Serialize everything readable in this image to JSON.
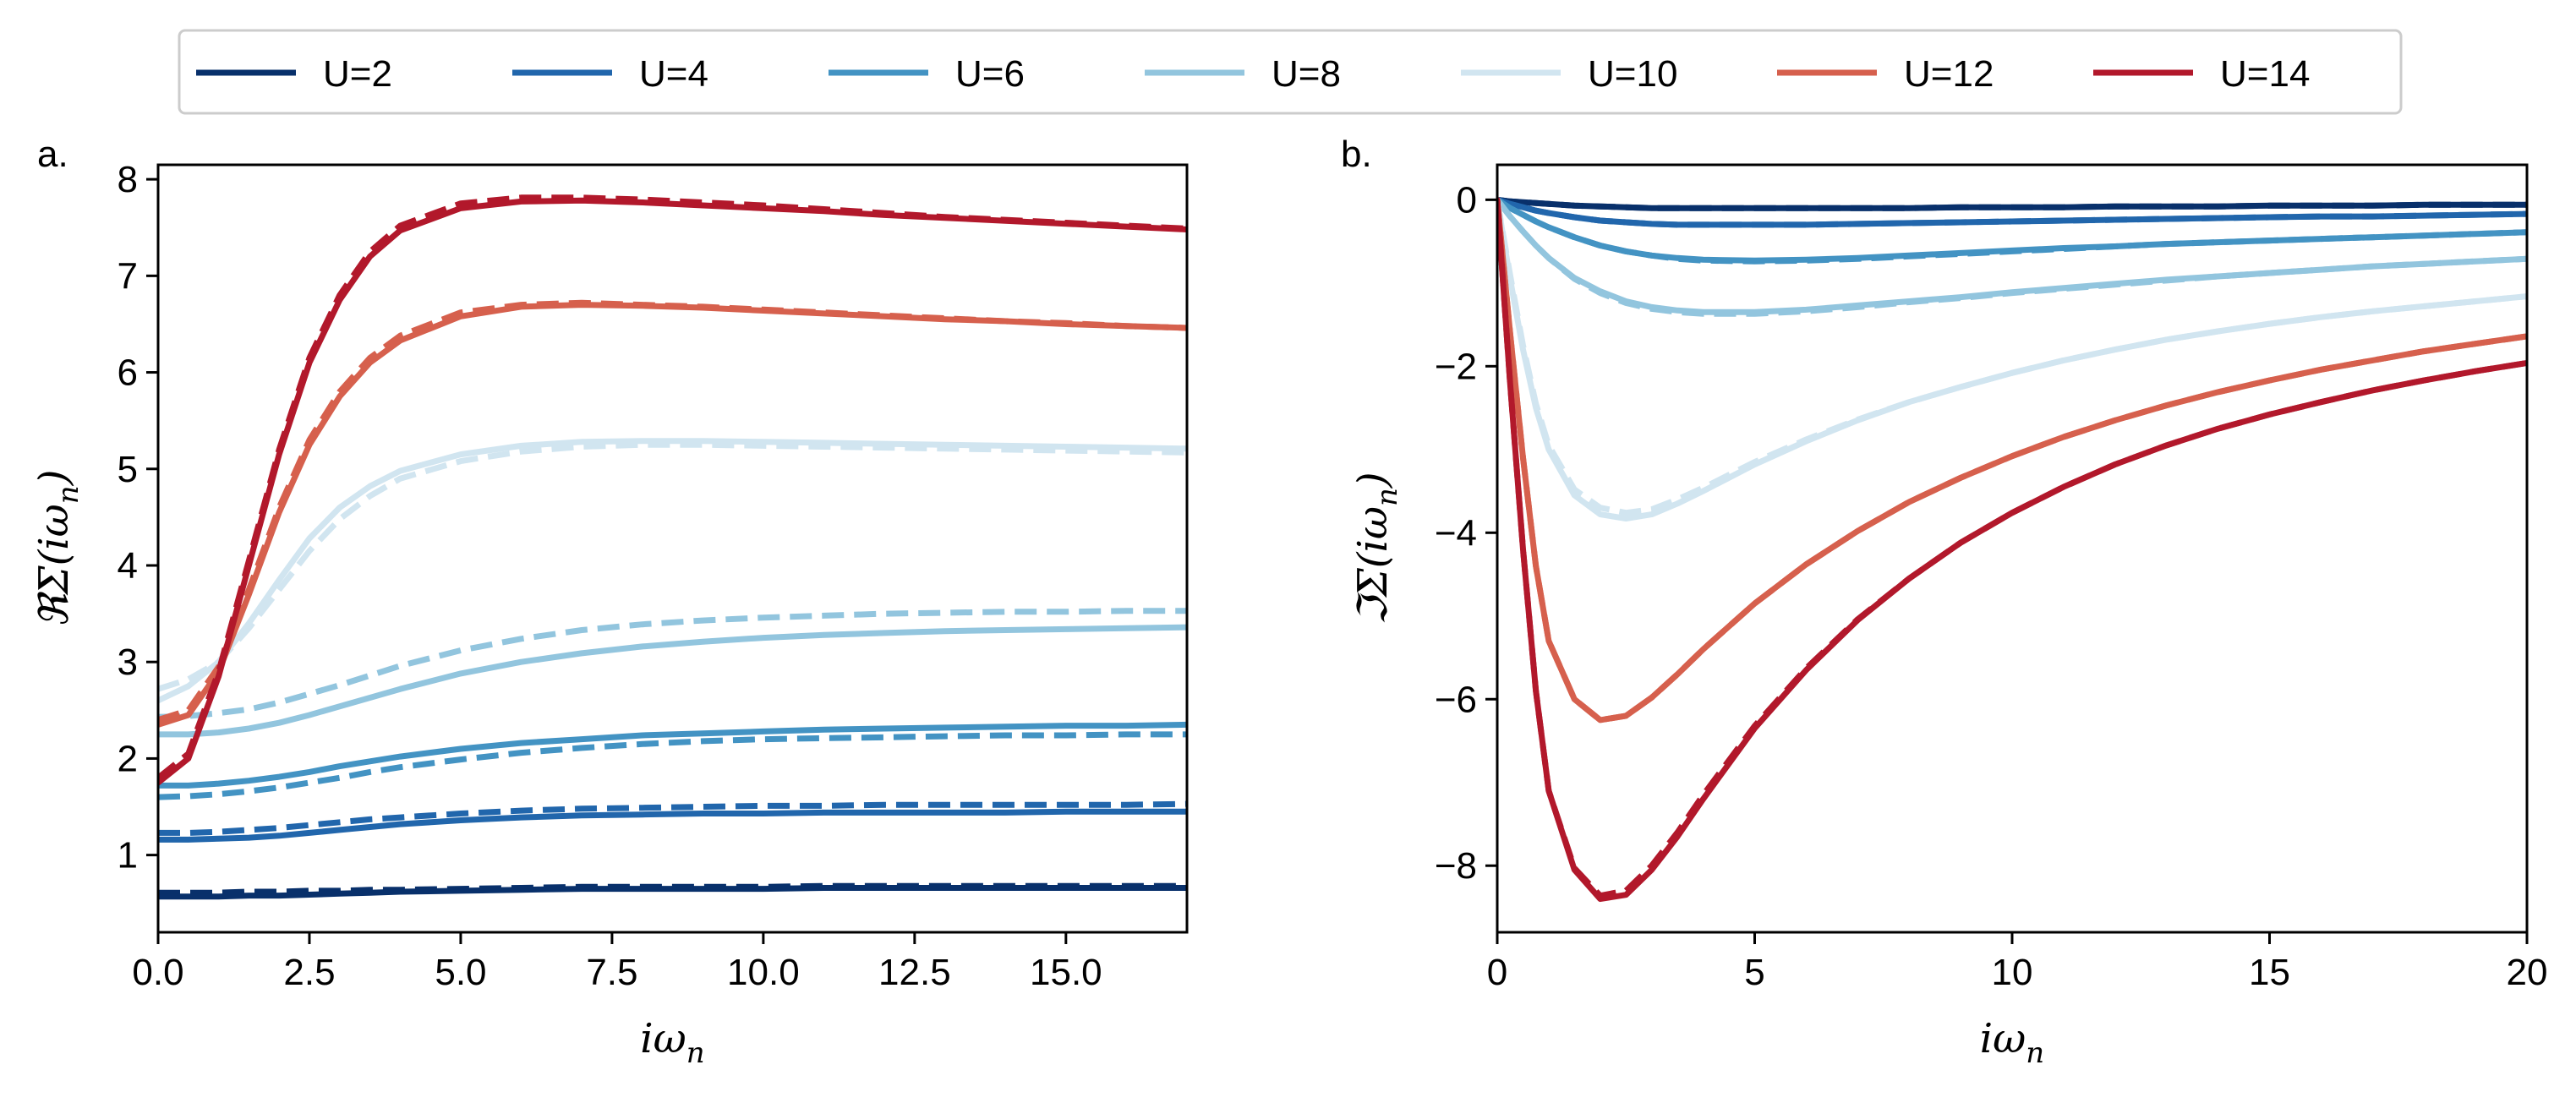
{
  "legend": [
    {
      "name": "U=2",
      "color": "#08306b"
    },
    {
      "name": "U=4",
      "color": "#2166ac"
    },
    {
      "name": "U=6",
      "color": "#4393c3"
    },
    {
      "name": "U=8",
      "color": "#92c5de"
    },
    {
      "name": "U=10",
      "color": "#d1e5f0"
    },
    {
      "name": "U=12",
      "color": "#d6604d"
    },
    {
      "name": "U=14",
      "color": "#b2182b"
    }
  ],
  "chart_data": [
    {
      "type": "line",
      "panel_label": "a.",
      "xlabel_text": "iω",
      "xlabel_sub": "n",
      "ylabel_prefix": "ℜΣ(iω",
      "ylabel_sub": "n",
      "ylabel_suffix": ")",
      "xlim": [
        0,
        17
      ],
      "ylim": [
        0.2,
        8.15
      ],
      "xticks": [
        0,
        2.5,
        5,
        7.5,
        10,
        12.5,
        15
      ],
      "xtick_labels": [
        "0.0",
        "2.5",
        "5.0",
        "7.5",
        "10.0",
        "12.5",
        "15.0"
      ],
      "yticks": [
        1,
        2,
        3,
        4,
        5,
        6,
        7,
        8
      ],
      "ytick_labels": [
        "1",
        "2",
        "3",
        "4",
        "5",
        "6",
        "7",
        "8"
      ],
      "x": [
        0,
        0.5,
        1,
        1.5,
        2,
        2.5,
        3,
        3.5,
        4,
        5,
        6,
        7,
        8,
        9,
        10,
        11,
        12,
        13,
        14,
        15,
        16,
        17
      ],
      "series": [
        {
          "name": "U=2",
          "solid": [
            0.57,
            0.57,
            0.57,
            0.58,
            0.58,
            0.59,
            0.6,
            0.61,
            0.62,
            0.63,
            0.64,
            0.65,
            0.65,
            0.65,
            0.65,
            0.66,
            0.66,
            0.66,
            0.66,
            0.66,
            0.66,
            0.66
          ],
          "dashed": [
            0.61,
            0.61,
            0.61,
            0.62,
            0.62,
            0.63,
            0.63,
            0.64,
            0.64,
            0.65,
            0.66,
            0.67,
            0.67,
            0.67,
            0.67,
            0.68,
            0.68,
            0.68,
            0.68,
            0.68,
            0.68,
            0.68
          ]
        },
        {
          "name": "U=4",
          "solid": [
            1.16,
            1.16,
            1.17,
            1.18,
            1.2,
            1.23,
            1.26,
            1.29,
            1.32,
            1.36,
            1.39,
            1.41,
            1.42,
            1.43,
            1.43,
            1.44,
            1.44,
            1.44,
            1.44,
            1.45,
            1.45,
            1.45
          ],
          "dashed": [
            1.23,
            1.23,
            1.24,
            1.26,
            1.28,
            1.31,
            1.34,
            1.37,
            1.39,
            1.43,
            1.46,
            1.48,
            1.49,
            1.5,
            1.51,
            1.51,
            1.52,
            1.52,
            1.52,
            1.52,
            1.52,
            1.53
          ]
        },
        {
          "name": "U=6",
          "solid": [
            1.72,
            1.72,
            1.74,
            1.77,
            1.81,
            1.86,
            1.92,
            1.97,
            2.02,
            2.1,
            2.16,
            2.2,
            2.24,
            2.26,
            2.28,
            2.3,
            2.31,
            2.32,
            2.33,
            2.34,
            2.34,
            2.35
          ],
          "dashed": [
            1.6,
            1.61,
            1.63,
            1.66,
            1.7,
            1.75,
            1.8,
            1.86,
            1.91,
            1.99,
            2.06,
            2.11,
            2.15,
            2.18,
            2.2,
            2.21,
            2.22,
            2.23,
            2.24,
            2.24,
            2.25,
            2.25
          ]
        },
        {
          "name": "U=8",
          "solid": [
            2.25,
            2.25,
            2.27,
            2.31,
            2.37,
            2.45,
            2.54,
            2.63,
            2.72,
            2.88,
            3.0,
            3.09,
            3.16,
            3.21,
            3.25,
            3.28,
            3.3,
            3.32,
            3.33,
            3.34,
            3.35,
            3.36
          ],
          "dashed": [
            2.43,
            2.44,
            2.47,
            2.51,
            2.58,
            2.67,
            2.76,
            2.86,
            2.96,
            3.12,
            3.24,
            3.33,
            3.39,
            3.43,
            3.46,
            3.48,
            3.5,
            3.51,
            3.52,
            3.52,
            3.53,
            3.53
          ]
        },
        {
          "name": "U=10",
          "solid": [
            2.6,
            2.75,
            3.0,
            3.4,
            3.85,
            4.28,
            4.6,
            4.82,
            4.98,
            5.15,
            5.24,
            5.28,
            5.29,
            5.29,
            5.28,
            5.27,
            5.26,
            5.25,
            5.24,
            5.23,
            5.22,
            5.21
          ],
          "dashed": [
            2.72,
            2.82,
            3.0,
            3.35,
            3.75,
            4.15,
            4.48,
            4.72,
            4.9,
            5.08,
            5.18,
            5.23,
            5.25,
            5.25,
            5.24,
            5.23,
            5.22,
            5.21,
            5.2,
            5.19,
            5.18,
            5.17
          ]
        },
        {
          "name": "U=12",
          "solid": [
            2.35,
            2.45,
            2.9,
            3.7,
            4.55,
            5.25,
            5.75,
            6.1,
            6.33,
            6.58,
            6.68,
            6.7,
            6.69,
            6.67,
            6.64,
            6.61,
            6.58,
            6.55,
            6.53,
            6.5,
            6.48,
            6.46
          ],
          "dashed": [
            2.4,
            2.5,
            2.95,
            3.75,
            4.6,
            5.3,
            5.8,
            6.15,
            6.38,
            6.62,
            6.7,
            6.72,
            6.7,
            6.68,
            6.65,
            6.62,
            6.59,
            6.56,
            6.53,
            6.51,
            6.48,
            6.46
          ]
        },
        {
          "name": "U=14",
          "solid": [
            1.75,
            2.0,
            2.85,
            4.0,
            5.15,
            6.1,
            6.75,
            7.2,
            7.47,
            7.7,
            7.77,
            7.78,
            7.76,
            7.73,
            7.7,
            7.67,
            7.63,
            7.6,
            7.57,
            7.54,
            7.51,
            7.48
          ],
          "dashed": [
            1.8,
            2.05,
            2.9,
            4.05,
            5.2,
            6.15,
            6.8,
            7.25,
            7.52,
            7.75,
            7.81,
            7.81,
            7.79,
            7.76,
            7.73,
            7.69,
            7.65,
            7.61,
            7.58,
            7.55,
            7.52,
            7.49
          ]
        }
      ]
    },
    {
      "type": "line",
      "panel_label": "b.",
      "xlabel_text": "iω",
      "xlabel_sub": "n",
      "ylabel_prefix": "ℑΣ(iω",
      "ylabel_sub": "n",
      "ylabel_suffix": ")",
      "xlim": [
        0,
        20
      ],
      "ylim": [
        -8.8,
        0.42
      ],
      "xticks": [
        0,
        5,
        10,
        15,
        20
      ],
      "xtick_labels": [
        "0",
        "5",
        "10",
        "15",
        "20"
      ],
      "yticks": [
        0,
        -2,
        -4,
        -6,
        -8
      ],
      "ytick_labels": [
        "0",
        "−2",
        "−4",
        "−6",
        "−8"
      ],
      "x": [
        0,
        0.25,
        0.5,
        0.75,
        1,
        1.5,
        2,
        2.5,
        3,
        3.5,
        4,
        5,
        6,
        7,
        8,
        9,
        10,
        11,
        12,
        13,
        14,
        15,
        16,
        17,
        18,
        19,
        20
      ],
      "series": [
        {
          "name": "U=2",
          "solid": [
            0,
            -0.02,
            -0.03,
            -0.04,
            -0.05,
            -0.07,
            -0.08,
            -0.09,
            -0.1,
            -0.1,
            -0.1,
            -0.1,
            -0.1,
            -0.1,
            -0.1,
            -0.09,
            -0.09,
            -0.09,
            -0.08,
            -0.08,
            -0.08,
            -0.07,
            -0.07,
            -0.07,
            -0.06,
            -0.06,
            -0.06
          ],
          "dashed": [
            0,
            -0.02,
            -0.03,
            -0.04,
            -0.05,
            -0.07,
            -0.08,
            -0.09,
            -0.1,
            -0.1,
            -0.1,
            -0.1,
            -0.1,
            -0.1,
            -0.1,
            -0.09,
            -0.09,
            -0.09,
            -0.08,
            -0.08,
            -0.08,
            -0.07,
            -0.07,
            -0.07,
            -0.06,
            -0.06,
            -0.06
          ]
        },
        {
          "name": "U=4",
          "solid": [
            0,
            -0.05,
            -0.09,
            -0.13,
            -0.16,
            -0.21,
            -0.25,
            -0.27,
            -0.29,
            -0.3,
            -0.3,
            -0.3,
            -0.3,
            -0.29,
            -0.28,
            -0.27,
            -0.26,
            -0.25,
            -0.24,
            -0.23,
            -0.22,
            -0.21,
            -0.2,
            -0.2,
            -0.19,
            -0.18,
            -0.17
          ],
          "dashed": [
            0,
            -0.05,
            -0.09,
            -0.13,
            -0.16,
            -0.21,
            -0.25,
            -0.27,
            -0.29,
            -0.3,
            -0.3,
            -0.3,
            -0.3,
            -0.29,
            -0.28,
            -0.27,
            -0.26,
            -0.25,
            -0.24,
            -0.23,
            -0.22,
            -0.21,
            -0.2,
            -0.2,
            -0.19,
            -0.18,
            -0.17
          ]
        },
        {
          "name": "U=6",
          "solid": [
            0,
            -0.1,
            -0.18,
            -0.26,
            -0.33,
            -0.45,
            -0.55,
            -0.62,
            -0.67,
            -0.7,
            -0.72,
            -0.73,
            -0.72,
            -0.7,
            -0.67,
            -0.64,
            -0.61,
            -0.58,
            -0.56,
            -0.53,
            -0.51,
            -0.49,
            -0.47,
            -0.45,
            -0.43,
            -0.41,
            -0.39
          ],
          "dashed": [
            0,
            -0.1,
            -0.18,
            -0.26,
            -0.33,
            -0.45,
            -0.55,
            -0.62,
            -0.67,
            -0.71,
            -0.73,
            -0.74,
            -0.73,
            -0.71,
            -0.68,
            -0.65,
            -0.62,
            -0.59,
            -0.56,
            -0.53,
            -0.51,
            -0.49,
            -0.47,
            -0.45,
            -0.43,
            -0.41,
            -0.39
          ]
        },
        {
          "name": "U=8",
          "solid": [
            0,
            -0.2,
            -0.38,
            -0.55,
            -0.7,
            -0.94,
            -1.1,
            -1.22,
            -1.29,
            -1.33,
            -1.35,
            -1.35,
            -1.32,
            -1.27,
            -1.22,
            -1.17,
            -1.11,
            -1.06,
            -1.01,
            -0.96,
            -0.92,
            -0.88,
            -0.84,
            -0.8,
            -0.77,
            -0.74,
            -0.71
          ],
          "dashed": [
            0,
            -0.2,
            -0.38,
            -0.55,
            -0.7,
            -0.95,
            -1.12,
            -1.24,
            -1.31,
            -1.35,
            -1.37,
            -1.37,
            -1.34,
            -1.29,
            -1.23,
            -1.18,
            -1.12,
            -1.07,
            -1.02,
            -0.97,
            -0.92,
            -0.88,
            -0.84,
            -0.8,
            -0.77,
            -0.74,
            -0.71
          ]
        },
        {
          "name": "U=10",
          "solid": [
            0,
            -0.95,
            -1.8,
            -2.5,
            -3.0,
            -3.55,
            -3.78,
            -3.83,
            -3.78,
            -3.65,
            -3.5,
            -3.18,
            -2.9,
            -2.65,
            -2.43,
            -2.25,
            -2.08,
            -1.93,
            -1.8,
            -1.68,
            -1.58,
            -1.49,
            -1.41,
            -1.34,
            -1.28,
            -1.22,
            -1.16
          ],
          "dashed": [
            0,
            -0.9,
            -1.75,
            -2.45,
            -2.95,
            -3.48,
            -3.7,
            -3.76,
            -3.72,
            -3.6,
            -3.46,
            -3.15,
            -2.88,
            -2.64,
            -2.43,
            -2.25,
            -2.08,
            -1.93,
            -1.8,
            -1.68,
            -1.58,
            -1.49,
            -1.41,
            -1.34,
            -1.28,
            -1.22,
            -1.16
          ]
        },
        {
          "name": "U=12",
          "solid": [
            0,
            -1.6,
            -3.1,
            -4.4,
            -5.3,
            -6.0,
            -6.25,
            -6.2,
            -5.98,
            -5.7,
            -5.4,
            -4.85,
            -4.38,
            -3.98,
            -3.63,
            -3.34,
            -3.08,
            -2.85,
            -2.65,
            -2.47,
            -2.31,
            -2.17,
            -2.04,
            -1.93,
            -1.82,
            -1.73,
            -1.64
          ],
          "dashed": [
            0,
            -1.6,
            -3.1,
            -4.4,
            -5.3,
            -6.0,
            -6.25,
            -6.2,
            -5.98,
            -5.7,
            -5.4,
            -4.85,
            -4.38,
            -3.98,
            -3.63,
            -3.34,
            -3.08,
            -2.85,
            -2.65,
            -2.47,
            -2.31,
            -2.17,
            -2.04,
            -1.93,
            -1.82,
            -1.73,
            -1.64
          ]
        },
        {
          "name": "U=14",
          "solid": [
            0,
            -2.2,
            -4.2,
            -5.9,
            -7.1,
            -8.05,
            -8.4,
            -8.35,
            -8.05,
            -7.65,
            -7.2,
            -6.35,
            -5.65,
            -5.05,
            -4.55,
            -4.12,
            -3.76,
            -3.45,
            -3.18,
            -2.95,
            -2.75,
            -2.58,
            -2.43,
            -2.29,
            -2.17,
            -2.06,
            -1.96
          ],
          "dashed": [
            0,
            -2.2,
            -4.2,
            -5.9,
            -7.1,
            -8.03,
            -8.36,
            -8.3,
            -8.0,
            -7.6,
            -7.15,
            -6.32,
            -5.63,
            -5.04,
            -4.55,
            -4.12,
            -3.76,
            -3.45,
            -3.18,
            -2.95,
            -2.75,
            -2.58,
            -2.43,
            -2.29,
            -2.17,
            -2.06,
            -1.96
          ]
        }
      ]
    }
  ]
}
